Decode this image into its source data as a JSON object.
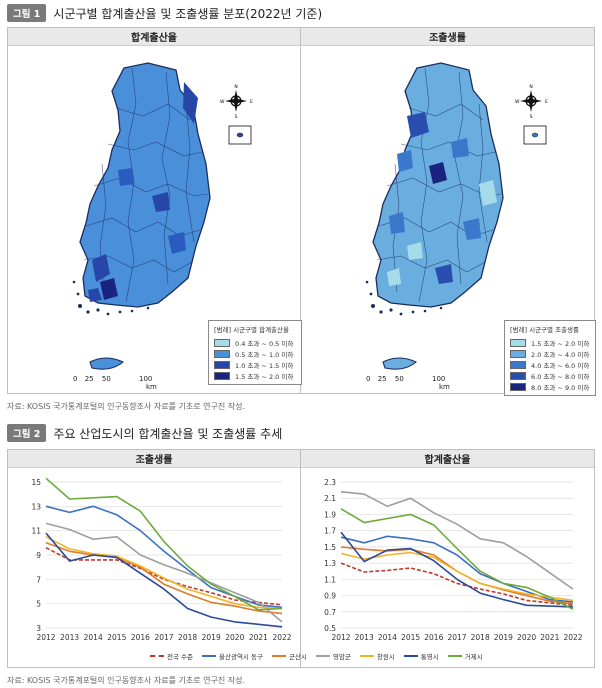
{
  "figure1": {
    "tag": "그림 1",
    "title": "시군구별 합계출산율 및 조출생률 분포(2022년 기준)",
    "panels": [
      {
        "title": "합계출산율",
        "legend_title": "[범례] 시군구별 합계출산율",
        "legend": [
          {
            "label": "0.4 초과 ~ 0.5 이하",
            "color": "#a6dcea"
          },
          {
            "label": "0.5 초과 ~ 1.0 이하",
            "color": "#4a90d6"
          },
          {
            "label": "1.0 초과 ~ 1.5 이하",
            "color": "#2747a8"
          },
          {
            "label": "1.5 초과 ~ 2.0 이하",
            "color": "#1a237e"
          }
        ]
      },
      {
        "title": "조출생률",
        "legend_title": "[범례] 시군구별 조출생률",
        "legend": [
          {
            "label": "1.5 초과 ~ 2.0 이하",
            "color": "#a6dcea"
          },
          {
            "label": "2.0 초과 ~ 4.0 이하",
            "color": "#6aaee0"
          },
          {
            "label": "4.0 초과 ~ 6.0 이하",
            "color": "#3a78cc"
          },
          {
            "label": "6.0 초과 ~ 8.0 이하",
            "color": "#2a4db0"
          },
          {
            "label": "8.0 초과 ~ 9.0 이하",
            "color": "#1a237e"
          }
        ]
      }
    ],
    "scale_labels": [
      "0",
      "25",
      "50",
      "100"
    ],
    "scale_unit": "km",
    "compass": {
      "n": "N",
      "s": "S",
      "e": "E",
      "w": "W"
    },
    "source": "자료: KOSIS 국가통계포털의 인구동향조사 자료를 기초로 연구진 작성."
  },
  "figure2": {
    "tag": "그림 2",
    "title": "주요 산업도시의 합계출산율 및 조출생률 추세",
    "source": "자료: KOSIS 국가통계포털의 인구동향조사 자료를 기초로 연구진 작성."
  },
  "chart_data": [
    {
      "type": "line",
      "title": "조출생률",
      "x": [
        "2012",
        "2013",
        "2014",
        "2015",
        "2016",
        "2017",
        "2018",
        "2019",
        "2020",
        "2021",
        "2022"
      ],
      "ylim": [
        3,
        15
      ],
      "yticks": [
        "3",
        "5",
        "7",
        "9",
        "11",
        "13",
        "15"
      ],
      "grid": true,
      "series": [
        {
          "name": "전국 수준",
          "color": "#c0392b",
          "dashed": true,
          "values": [
            9.6,
            8.6,
            8.6,
            8.6,
            7.9,
            7.0,
            6.4,
            5.9,
            5.3,
            5.1,
            4.9
          ]
        },
        {
          "name": "울산광역시 동구",
          "color": "#3b6fc4",
          "values": [
            13.0,
            12.5,
            13.0,
            12.3,
            11.0,
            9.3,
            7.8,
            6.3,
            5.6,
            4.9,
            4.7
          ]
        },
        {
          "name": "군산시",
          "color": "#e07b2a",
          "values": [
            10.0,
            9.3,
            9.0,
            8.8,
            8.0,
            6.6,
            5.8,
            5.1,
            4.8,
            4.4,
            4.2
          ]
        },
        {
          "name": "영암군",
          "color": "#9e9e9e",
          "values": [
            11.6,
            11.1,
            10.3,
            10.5,
            9.0,
            8.2,
            7.5,
            6.7,
            5.9,
            5.1,
            3.5
          ]
        },
        {
          "name": "창원시",
          "color": "#f2b42a",
          "values": [
            10.5,
            9.5,
            9.1,
            8.9,
            8.1,
            7.1,
            6.2,
            5.6,
            5.0,
            4.7,
            4.6
          ]
        },
        {
          "name": "통영시",
          "color": "#2b4a9a",
          "values": [
            10.8,
            8.5,
            9.0,
            8.8,
            7.5,
            6.2,
            4.6,
            3.9,
            3.5,
            3.3,
            3.1
          ]
        },
        {
          "name": "거제시",
          "color": "#6aab3a",
          "values": [
            15.3,
            13.6,
            13.7,
            13.8,
            12.6,
            10.1,
            8.1,
            6.6,
            5.6,
            4.5,
            4.6
          ]
        }
      ]
    },
    {
      "type": "line",
      "title": "합계출산율",
      "x": [
        "2012",
        "2013",
        "2014",
        "2015",
        "2016",
        "2017",
        "2018",
        "2019",
        "2020",
        "2021",
        "2022"
      ],
      "ylim": [
        0.5,
        2.3
      ],
      "yticks": [
        "0.5",
        "0.7",
        "0.9",
        "1.1",
        "1.3",
        "1.5",
        "1.7",
        "1.9",
        "2.1",
        "2.3"
      ],
      "grid": true,
      "series": [
        {
          "name": "전국 수준",
          "color": "#c0392b",
          "dashed": true,
          "values": [
            1.3,
            1.19,
            1.21,
            1.24,
            1.17,
            1.05,
            0.98,
            0.92,
            0.84,
            0.81,
            0.78
          ]
        },
        {
          "name": "울산광역시 동구",
          "color": "#3b6fc4",
          "values": [
            1.62,
            1.55,
            1.63,
            1.6,
            1.55,
            1.4,
            1.17,
            1.05,
            0.95,
            0.85,
            0.82
          ]
        },
        {
          "name": "군산시",
          "color": "#e07b2a",
          "values": [
            1.5,
            1.47,
            1.45,
            1.47,
            1.4,
            1.2,
            1.05,
            0.97,
            0.9,
            0.83,
            0.8
          ]
        },
        {
          "name": "영암군",
          "color": "#9e9e9e",
          "values": [
            2.18,
            2.15,
            2.0,
            2.1,
            1.92,
            1.78,
            1.6,
            1.55,
            1.38,
            1.18,
            0.98
          ]
        },
        {
          "name": "창원시",
          "color": "#f2b42a",
          "values": [
            1.42,
            1.35,
            1.4,
            1.43,
            1.37,
            1.2,
            1.05,
            0.98,
            0.92,
            0.88,
            0.84
          ]
        },
        {
          "name": "통영시",
          "color": "#2b4a9a",
          "values": [
            1.68,
            1.32,
            1.46,
            1.48,
            1.33,
            1.1,
            0.93,
            0.85,
            0.78,
            0.77,
            0.76
          ]
        },
        {
          "name": "거제시",
          "color": "#6aab3a",
          "values": [
            1.97,
            1.8,
            1.85,
            1.9,
            1.77,
            1.48,
            1.2,
            1.05,
            1.0,
            0.88,
            0.73
          ]
        }
      ]
    }
  ]
}
